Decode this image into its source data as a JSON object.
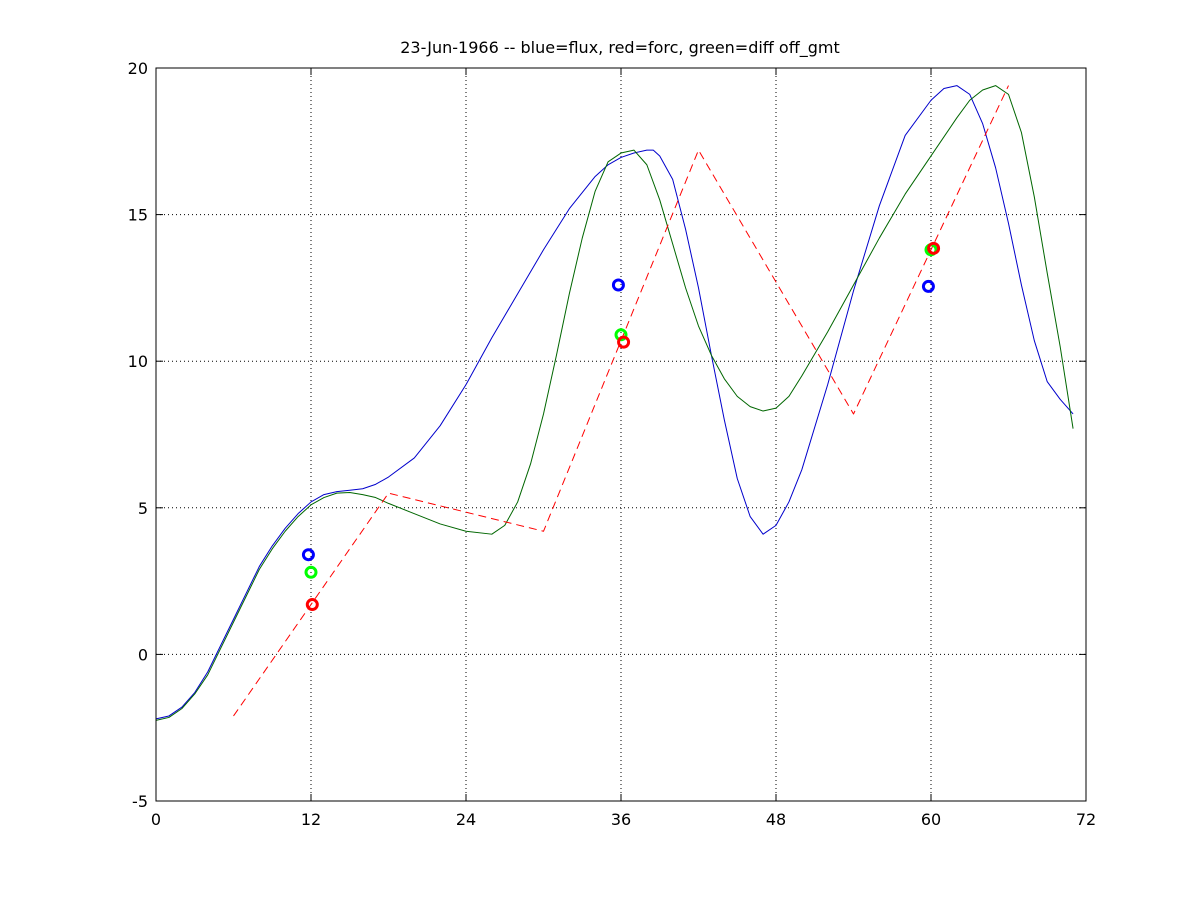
{
  "chart_data": {
    "type": "line",
    "title": "23-Jun-1966 -- blue=flux, red=forc, green=diff off_gmt",
    "xlabel": "",
    "ylabel": "",
    "xlim": [
      0,
      72
    ],
    "ylim": [
      -5,
      20
    ],
    "xticks": [
      0,
      12,
      24,
      36,
      48,
      60,
      72
    ],
    "yticks": [
      -5,
      0,
      5,
      10,
      15,
      20
    ],
    "xtick_labels": [
      "0",
      "12",
      "24",
      "36",
      "48",
      "60",
      "72"
    ],
    "ytick_labels": [
      "-5",
      "0",
      "5",
      "10",
      "15",
      "20"
    ],
    "grid": "dotted",
    "series": [
      {
        "color": "#0000cc",
        "style": "solid",
        "x": [
          0,
          1,
          2,
          3,
          4,
          5,
          6,
          7,
          8,
          9,
          10,
          11,
          12,
          13,
          14,
          15,
          16,
          17,
          18,
          20,
          22,
          24,
          26,
          28,
          30,
          32,
          34,
          35,
          36,
          37,
          38,
          38.5,
          39,
          40,
          41,
          42,
          43,
          44,
          45,
          46,
          47,
          48,
          49,
          50,
          52,
          54,
          56,
          58,
          60,
          61,
          62,
          63,
          64,
          65,
          66,
          67,
          68,
          69,
          70,
          71
        ],
        "y": [
          -2.2,
          -2.1,
          -1.8,
          -1.3,
          -0.6,
          0.3,
          1.2,
          2.1,
          3.0,
          3.7,
          4.3,
          4.8,
          5.2,
          5.45,
          5.55,
          5.6,
          5.65,
          5.8,
          6.05,
          6.7,
          7.8,
          9.2,
          10.8,
          12.3,
          13.8,
          15.2,
          16.3,
          16.7,
          16.95,
          17.1,
          17.2,
          17.2,
          17.0,
          16.2,
          14.5,
          12.5,
          10.2,
          8.0,
          6.0,
          4.7,
          4.1,
          4.4,
          5.2,
          6.3,
          9.2,
          12.4,
          15.3,
          17.7,
          18.9,
          19.3,
          19.4,
          19.1,
          18.1,
          16.6,
          14.7,
          12.6,
          10.7,
          9.3,
          8.7,
          8.2
        ]
      },
      {
        "color": "#006600",
        "style": "solid",
        "x": [
          0,
          1,
          2,
          3,
          4,
          5,
          6,
          7,
          8,
          9,
          10,
          11,
          12,
          13,
          14,
          15,
          16,
          17,
          18,
          20,
          22,
          24,
          26,
          27,
          28,
          29,
          30,
          31,
          32,
          33,
          34,
          35,
          36,
          37,
          38,
          39,
          40,
          41,
          42,
          43,
          44,
          45,
          46,
          47,
          48,
          49,
          50,
          52,
          54,
          56,
          58,
          60,
          62,
          63,
          64,
          65,
          66,
          67,
          68,
          69,
          70,
          71
        ],
        "y": [
          -2.25,
          -2.15,
          -1.85,
          -1.35,
          -0.7,
          0.2,
          1.1,
          2.0,
          2.9,
          3.6,
          4.2,
          4.7,
          5.1,
          5.35,
          5.5,
          5.52,
          5.45,
          5.35,
          5.15,
          4.8,
          4.45,
          4.2,
          4.1,
          4.4,
          5.2,
          6.5,
          8.2,
          10.2,
          12.3,
          14.2,
          15.8,
          16.8,
          17.1,
          17.2,
          16.7,
          15.5,
          14.0,
          12.5,
          11.2,
          10.2,
          9.4,
          8.8,
          8.45,
          8.3,
          8.4,
          8.8,
          9.5,
          11.0,
          12.6,
          14.2,
          15.7,
          17.0,
          18.3,
          18.9,
          19.25,
          19.4,
          19.1,
          17.8,
          15.6,
          13.0,
          10.5,
          7.7
        ]
      },
      {
        "color": "#ff0000",
        "style": "dashed",
        "x": [
          6,
          18,
          30,
          42,
          54,
          66
        ],
        "y": [
          -2.1,
          5.5,
          4.2,
          17.2,
          8.2,
          19.4
        ]
      }
    ],
    "markers": [
      {
        "color": "#0000ff",
        "x": 11.8,
        "y": 3.4
      },
      {
        "color": "#00ff00",
        "x": 12.0,
        "y": 2.8
      },
      {
        "color": "#ff0000",
        "x": 12.1,
        "y": 1.7
      },
      {
        "color": "#0000ff",
        "x": 35.8,
        "y": 12.6
      },
      {
        "color": "#00ff00",
        "x": 36.0,
        "y": 10.9
      },
      {
        "color": "#ff0000",
        "x": 36.2,
        "y": 10.65
      },
      {
        "color": "#0000ff",
        "x": 59.8,
        "y": 12.55
      },
      {
        "color": "#00ff00",
        "x": 60.0,
        "y": 13.8
      },
      {
        "color": "#ff0000",
        "x": 60.2,
        "y": 13.85
      }
    ]
  }
}
